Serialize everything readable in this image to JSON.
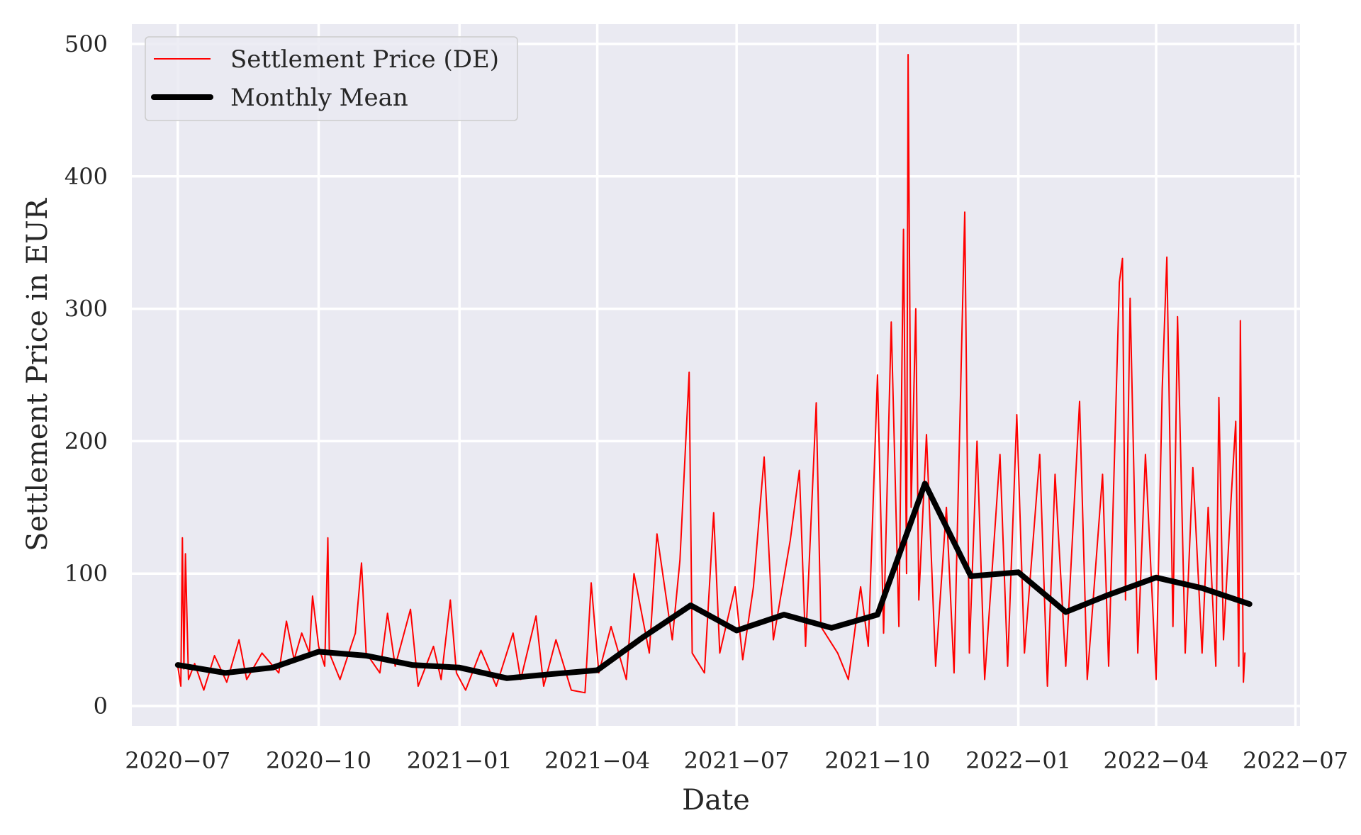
{
  "colors": {
    "settlement": "#ff0000",
    "monthly_mean": "#000000",
    "plot_background": "#eaeaf2",
    "grid": "#ffffff"
  },
  "chart_data": {
    "type": "line",
    "title": "",
    "xlabel": "Date",
    "ylabel": "Settlement Price in EUR",
    "x_ticks": [
      "2020-07-01",
      "2020-10-01",
      "2021-01-01",
      "2021-04-01",
      "2021-07-01",
      "2021-10-01",
      "2022-01-01",
      "2022-04-01",
      "2022-07-01"
    ],
    "x_tick_labels": [
      "2020−07",
      "2020−10",
      "2021−01",
      "2021−04",
      "2021−07",
      "2021−10",
      "2022−01",
      "2022−04",
      "2022−07"
    ],
    "y_ticks": [
      0,
      100,
      200,
      300,
      400,
      500
    ],
    "y_tick_labels": [
      "0",
      "100",
      "200",
      "300",
      "400",
      "500"
    ],
    "xlim": [
      "2020-06-01",
      "2022-07-04"
    ],
    "ylim": [
      -15,
      515
    ],
    "grid": true,
    "legend_position": "top-left",
    "series": [
      {
        "name": "Settlement Price (DE)",
        "color": "#ff0000",
        "style": "thin-line",
        "points": [
          [
            "2020-07-01",
            30
          ],
          [
            "2020-07-03",
            15
          ],
          [
            "2020-07-04",
            127
          ],
          [
            "2020-07-05",
            28
          ],
          [
            "2020-07-06",
            115
          ],
          [
            "2020-07-08",
            20
          ],
          [
            "2020-07-12",
            32
          ],
          [
            "2020-07-18",
            12
          ],
          [
            "2020-07-25",
            38
          ],
          [
            "2020-08-02",
            18
          ],
          [
            "2020-08-10",
            50
          ],
          [
            "2020-08-15",
            20
          ],
          [
            "2020-08-25",
            40
          ],
          [
            "2020-09-05",
            25
          ],
          [
            "2020-09-10",
            64
          ],
          [
            "2020-09-15",
            35
          ],
          [
            "2020-09-20",
            55
          ],
          [
            "2020-09-25",
            40
          ],
          [
            "2020-09-27",
            83
          ],
          [
            "2020-10-01",
            45
          ],
          [
            "2020-10-05",
            30
          ],
          [
            "2020-10-07",
            127
          ],
          [
            "2020-10-08",
            40
          ],
          [
            "2020-10-15",
            20
          ],
          [
            "2020-10-25",
            55
          ],
          [
            "2020-10-29",
            108
          ],
          [
            "2020-11-01",
            40
          ],
          [
            "2020-11-10",
            25
          ],
          [
            "2020-11-15",
            70
          ],
          [
            "2020-11-20",
            30
          ],
          [
            "2020-11-30",
            73
          ],
          [
            "2020-12-05",
            15
          ],
          [
            "2020-12-15",
            45
          ],
          [
            "2020-12-20",
            20
          ],
          [
            "2020-12-26",
            80
          ],
          [
            "2020-12-30",
            25
          ],
          [
            "2021-01-05",
            12
          ],
          [
            "2021-01-15",
            42
          ],
          [
            "2021-01-25",
            15
          ],
          [
            "2021-02-05",
            55
          ],
          [
            "2021-02-10",
            20
          ],
          [
            "2021-02-20",
            68
          ],
          [
            "2021-02-25",
            15
          ],
          [
            "2021-03-05",
            50
          ],
          [
            "2021-03-15",
            12
          ],
          [
            "2021-03-24",
            10
          ],
          [
            "2021-03-28",
            93
          ],
          [
            "2021-04-02",
            25
          ],
          [
            "2021-04-10",
            60
          ],
          [
            "2021-04-20",
            20
          ],
          [
            "2021-04-25",
            100
          ],
          [
            "2021-05-05",
            40
          ],
          [
            "2021-05-10",
            130
          ],
          [
            "2021-05-20",
            50
          ],
          [
            "2021-05-25",
            110
          ],
          [
            "2021-05-31",
            252
          ],
          [
            "2021-06-02",
            40
          ],
          [
            "2021-06-10",
            25
          ],
          [
            "2021-06-16",
            146
          ],
          [
            "2021-06-20",
            40
          ],
          [
            "2021-06-30",
            90
          ],
          [
            "2021-07-05",
            35
          ],
          [
            "2021-07-12",
            90
          ],
          [
            "2021-07-19",
            188
          ],
          [
            "2021-07-25",
            50
          ],
          [
            "2021-08-05",
            125
          ],
          [
            "2021-08-11",
            178
          ],
          [
            "2021-08-15",
            45
          ],
          [
            "2021-08-22",
            229
          ],
          [
            "2021-08-25",
            60
          ],
          [
            "2021-09-05",
            40
          ],
          [
            "2021-09-12",
            20
          ],
          [
            "2021-09-20",
            90
          ],
          [
            "2021-09-25",
            45
          ],
          [
            "2021-10-01",
            250
          ],
          [
            "2021-10-05",
            55
          ],
          [
            "2021-10-10",
            290
          ],
          [
            "2021-10-15",
            60
          ],
          [
            "2021-10-18",
            360
          ],
          [
            "2021-10-20",
            100
          ],
          [
            "2021-10-21",
            492
          ],
          [
            "2021-10-23",
            150
          ],
          [
            "2021-10-26",
            300
          ],
          [
            "2021-10-28",
            80
          ],
          [
            "2021-11-02",
            205
          ],
          [
            "2021-11-08",
            30
          ],
          [
            "2021-11-15",
            150
          ],
          [
            "2021-11-20",
            25
          ],
          [
            "2021-11-27",
            373
          ],
          [
            "2021-11-30",
            40
          ],
          [
            "2021-12-05",
            200
          ],
          [
            "2021-12-10",
            20
          ],
          [
            "2021-12-20",
            190
          ],
          [
            "2021-12-25",
            30
          ],
          [
            "2021-12-31",
            220
          ],
          [
            "2022-01-05",
            40
          ],
          [
            "2022-01-15",
            190
          ],
          [
            "2022-01-20",
            15
          ],
          [
            "2022-01-25",
            175
          ],
          [
            "2022-02-01",
            30
          ],
          [
            "2022-02-10",
            230
          ],
          [
            "2022-02-15",
            20
          ],
          [
            "2022-02-25",
            175
          ],
          [
            "2022-03-01",
            30
          ],
          [
            "2022-03-08",
            320
          ],
          [
            "2022-03-10",
            338
          ],
          [
            "2022-03-12",
            80
          ],
          [
            "2022-03-15",
            308
          ],
          [
            "2022-03-20",
            40
          ],
          [
            "2022-03-25",
            190
          ],
          [
            "2022-04-01",
            20
          ],
          [
            "2022-04-05",
            240
          ],
          [
            "2022-04-08",
            339
          ],
          [
            "2022-04-12",
            60
          ],
          [
            "2022-04-15",
            294
          ],
          [
            "2022-04-20",
            40
          ],
          [
            "2022-04-25",
            180
          ],
          [
            "2022-05-01",
            40
          ],
          [
            "2022-05-05",
            150
          ],
          [
            "2022-05-10",
            30
          ],
          [
            "2022-05-12",
            233
          ],
          [
            "2022-05-15",
            50
          ],
          [
            "2022-05-20",
            157
          ],
          [
            "2022-05-23",
            215
          ],
          [
            "2022-05-25",
            30
          ],
          [
            "2022-05-26",
            291
          ],
          [
            "2022-05-28",
            18
          ],
          [
            "2022-05-29",
            40
          ]
        ]
      },
      {
        "name": "Monthly Mean",
        "color": "#000000",
        "style": "thick-line",
        "points": [
          [
            "2020-07-01",
            31
          ],
          [
            "2020-08-01",
            25
          ],
          [
            "2020-09-01",
            29
          ],
          [
            "2020-10-01",
            41
          ],
          [
            "2020-11-01",
            38
          ],
          [
            "2020-12-01",
            31
          ],
          [
            "2021-01-01",
            29
          ],
          [
            "2021-02-01",
            21
          ],
          [
            "2021-03-01",
            24
          ],
          [
            "2021-04-01",
            27
          ],
          [
            "2021-05-01",
            52
          ],
          [
            "2021-06-01",
            76
          ],
          [
            "2021-07-01",
            57
          ],
          [
            "2021-08-01",
            69
          ],
          [
            "2021-09-01",
            59
          ],
          [
            "2021-10-01",
            69
          ],
          [
            "2021-11-01",
            168
          ],
          [
            "2021-12-01",
            98
          ],
          [
            "2022-01-01",
            101
          ],
          [
            "2022-02-01",
            71
          ],
          [
            "2022-03-01",
            84
          ],
          [
            "2022-04-01",
            97
          ],
          [
            "2022-05-01",
            89
          ],
          [
            "2022-06-01",
            77
          ]
        ]
      }
    ]
  }
}
